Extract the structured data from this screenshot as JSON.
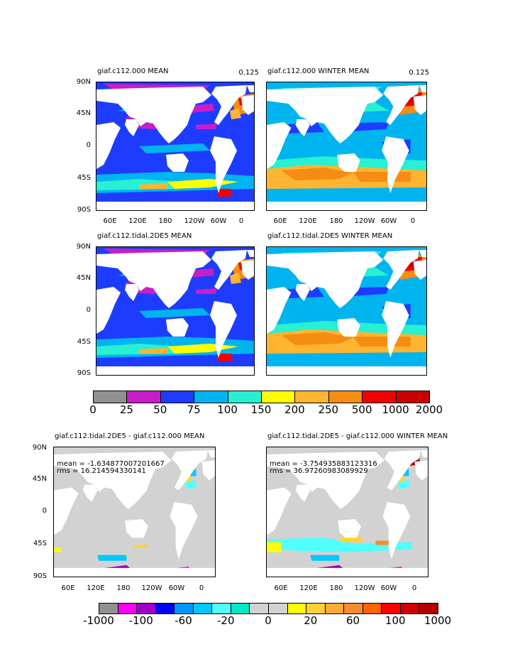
{
  "chart_data": [
    {
      "type": "heatmap",
      "title": "giaf.c112.000 MEAN",
      "value_label": "0.125",
      "yticks": [
        "90N",
        "45N",
        "0",
        "45S",
        "90S"
      ],
      "xticks": [
        "60E",
        "120E",
        "180",
        "120W",
        "60W",
        "0"
      ]
    },
    {
      "type": "heatmap",
      "title": "giaf.c112.000 WINTER MEAN",
      "value_label": "0.125",
      "yticks": [
        "90N",
        "45N",
        "0",
        "45S",
        "90S"
      ],
      "xticks": [
        "60E",
        "120E",
        "180",
        "120W",
        "60W",
        "0"
      ]
    },
    {
      "type": "heatmap",
      "title": "giaf.c112.tidal.2DE5 MEAN",
      "yticks": [
        "90N",
        "45N",
        "0",
        "45S",
        "90S"
      ],
      "xticks": []
    },
    {
      "type": "heatmap",
      "title": "giaf.c112.tidal.2DE5 WINTER MEAN",
      "yticks": [
        "90N",
        "45N",
        "0",
        "45S",
        "90S"
      ],
      "xticks": []
    },
    {
      "type": "heatmap",
      "title": "giaf.c112.tidal.2DE5 - giaf.c112.000 MEAN",
      "mean": "mean = -1.634877007201667",
      "rms": "rms = 16.214594330141",
      "yticks": [
        "90N",
        "45N",
        "0",
        "45S",
        "90S"
      ],
      "xticks": [
        "60E",
        "120E",
        "180",
        "120W",
        "60W",
        "0"
      ]
    },
    {
      "type": "heatmap",
      "title": "giaf.c112.tidal.2DE5 - giaf.c112.000 WINTER MEAN",
      "mean": "mean = -3.754935883123316",
      "rms": "rms = 36.97260983089929",
      "yticks": [
        "90N",
        "45N",
        "0",
        "45S",
        "90S"
      ],
      "xticks": [
        "60E",
        "120E",
        "180",
        "120W",
        "60W",
        "0"
      ]
    }
  ],
  "colorbar_top": {
    "colors": [
      "#909090",
      "#c81ec8",
      "#1e3cff",
      "#00b4f0",
      "#28f0d2",
      "#ffff00",
      "#ffb432",
      "#f58c14",
      "#f00000",
      "#c80000"
    ],
    "labels": [
      "0",
      "25",
      "50",
      "75",
      "100",
      "150",
      "200",
      "250",
      "500",
      "1000",
      "2000"
    ]
  },
  "colorbar_bottom": {
    "colors": [
      "#909090",
      "#ff00ff",
      "#a000c8",
      "#0000ff",
      "#0096ff",
      "#00c8ff",
      "#50ffff",
      "#00ebc3",
      "#d2d2d2",
      "#d2d2d2",
      "#ffff00",
      "#ffd232",
      "#ffaa32",
      "#f58c32",
      "#ff6400",
      "#ff0000",
      "#d20000",
      "#b40000"
    ],
    "labels": [
      "-1000",
      "-100",
      "-60",
      "-20",
      "0",
      "20",
      "60",
      "100",
      "1000"
    ]
  }
}
